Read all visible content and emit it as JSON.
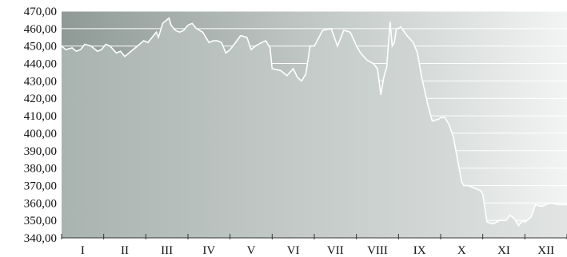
{
  "chart_data": {
    "type": "area",
    "title": "",
    "xlabel": "",
    "ylabel": "",
    "ylim": [
      340,
      470
    ],
    "y_ticks": [
      "340,00",
      "350,00",
      "360,00",
      "370,00",
      "380,00",
      "390,00",
      "400,00",
      "410,00",
      "420,00",
      "430,00",
      "440,00",
      "450,00",
      "460,00",
      "470,00"
    ],
    "y_tick_values": [
      340,
      350,
      360,
      370,
      380,
      390,
      400,
      410,
      420,
      430,
      440,
      450,
      460,
      470
    ],
    "categories": [
      "I",
      "II",
      "III",
      "IV",
      "V",
      "VI",
      "VII",
      "VIII",
      "IX",
      "X",
      "XI",
      "XII"
    ],
    "grid": true,
    "legend": "none",
    "colors": {
      "plot_bg_left": "#8f9a96",
      "plot_bg_right": "#f2f4f3",
      "area_left": "#a9b3b0",
      "area_right": "#e1e4e3",
      "line": "#ffffff",
      "grid": "#ffffff",
      "axis": "#333333"
    },
    "series": [
      {
        "values": [
          [
            0.0,
            450
          ],
          [
            0.1,
            448
          ],
          [
            0.25,
            449
          ],
          [
            0.35,
            447
          ],
          [
            0.45,
            448
          ],
          [
            0.55,
            451
          ],
          [
            0.7,
            450
          ],
          [
            0.85,
            447
          ],
          [
            0.95,
            448
          ],
          [
            1.05,
            451
          ],
          [
            1.15,
            450
          ],
          [
            1.3,
            446
          ],
          [
            1.4,
            447
          ],
          [
            1.5,
            444
          ],
          [
            1.6,
            446
          ],
          [
            1.75,
            449
          ],
          [
            1.85,
            451
          ],
          [
            1.95,
            453
          ],
          [
            2.05,
            452
          ],
          [
            2.15,
            455
          ],
          [
            2.25,
            458
          ],
          [
            2.3,
            455
          ],
          [
            2.4,
            463
          ],
          [
            2.55,
            466
          ],
          [
            2.6,
            462
          ],
          [
            2.7,
            459
          ],
          [
            2.8,
            458
          ],
          [
            2.9,
            459
          ],
          [
            3.0,
            462
          ],
          [
            3.1,
            463
          ],
          [
            3.2,
            460
          ],
          [
            3.35,
            458
          ],
          [
            3.5,
            452
          ],
          [
            3.6,
            453
          ],
          [
            3.7,
            453
          ],
          [
            3.8,
            452
          ],
          [
            3.9,
            446
          ],
          [
            4.0,
            448
          ],
          [
            4.1,
            451
          ],
          [
            4.25,
            456
          ],
          [
            4.4,
            455
          ],
          [
            4.5,
            448
          ],
          [
            4.6,
            450
          ],
          [
            4.75,
            452
          ],
          [
            4.85,
            453
          ],
          [
            4.95,
            449
          ],
          [
            5.0,
            437
          ],
          [
            5.2,
            436
          ],
          [
            5.35,
            433
          ],
          [
            5.5,
            437
          ],
          [
            5.6,
            432
          ],
          [
            5.7,
            430
          ],
          [
            5.8,
            434
          ],
          [
            5.9,
            450
          ],
          [
            6.0,
            450
          ],
          [
            6.2,
            459
          ],
          [
            6.4,
            460
          ],
          [
            6.55,
            450
          ],
          [
            6.7,
            459
          ],
          [
            6.85,
            458
          ],
          [
            6.95,
            453
          ],
          [
            7.0,
            450
          ],
          [
            7.1,
            446
          ],
          [
            7.25,
            442
          ],
          [
            7.4,
            440
          ],
          [
            7.5,
            437
          ],
          [
            7.58,
            422
          ],
          [
            7.65,
            432
          ],
          [
            7.72,
            438
          ],
          [
            7.8,
            464
          ],
          [
            7.85,
            450
          ],
          [
            7.9,
            452
          ],
          [
            7.95,
            460
          ],
          [
            8.0,
            460
          ],
          [
            8.05,
            461
          ],
          [
            8.2,
            456
          ],
          [
            8.35,
            452
          ],
          [
            8.45,
            446
          ],
          [
            8.55,
            432
          ],
          [
            8.7,
            416
          ],
          [
            8.8,
            407
          ],
          [
            8.95,
            408
          ],
          [
            9.0,
            409
          ],
          [
            9.1,
            409
          ],
          [
            9.2,
            405
          ],
          [
            9.3,
            398
          ],
          [
            9.4,
            385
          ],
          [
            9.5,
            372
          ],
          [
            9.55,
            370
          ],
          [
            9.65,
            370
          ],
          [
            9.75,
            369
          ],
          [
            9.85,
            368
          ],
          [
            9.95,
            367
          ],
          [
            10.0,
            365
          ],
          [
            10.1,
            349
          ],
          [
            10.25,
            348
          ],
          [
            10.4,
            350
          ],
          [
            10.55,
            350
          ],
          [
            10.65,
            353
          ],
          [
            10.75,
            351
          ],
          [
            10.85,
            347
          ],
          [
            10.95,
            350
          ],
          [
            11.0,
            349
          ],
          [
            11.15,
            352
          ],
          [
            11.25,
            359
          ],
          [
            11.4,
            358
          ],
          [
            11.6,
            360
          ],
          [
            11.8,
            359
          ],
          [
            12.0,
            359
          ]
        ]
      }
    ]
  }
}
